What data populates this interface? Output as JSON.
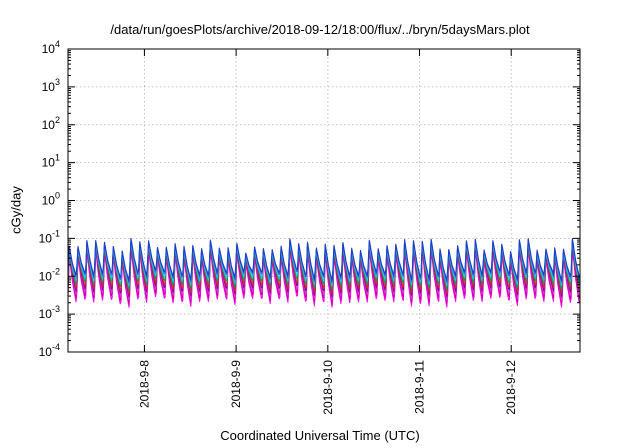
{
  "chart_data": {
    "type": "line",
    "title": "/data/run/goesPlots/archive/2018-09-12/18:00/flux/../bryn/5daysMars.plot",
    "xlabel": "Coordinated Universal Time (UTC)",
    "ylabel": "cGy/day",
    "yscale": "log",
    "ylim": [
      0.0001,
      10000
    ],
    "ytick_labels": [
      {
        "base": "10",
        "exp": "-4"
      },
      {
        "base": "10",
        "exp": "-3"
      },
      {
        "base": "10",
        "exp": "-2"
      },
      {
        "base": "10",
        "exp": "-1"
      },
      {
        "base": "10",
        "exp": "0"
      },
      {
        "base": "10",
        "exp": "1"
      },
      {
        "base": "10",
        "exp": "2"
      },
      {
        "base": "10",
        "exp": "3"
      },
      {
        "base": "10",
        "exp": "4"
      }
    ],
    "xlim": [
      "2018-09-07 04:00",
      "2018-09-12 18:00"
    ],
    "xtick_labels": [
      "2018-9-8",
      "2018-9-9",
      "2018-9-10",
      "2018-9-11",
      "2018-9-12"
    ],
    "grid": true,
    "legend": "none",
    "pattern": {
      "sawtooth_period_hours": 2.3,
      "teeth_count": 58,
      "peak_value_range": [
        0.04,
        0.1
      ],
      "trough_value_range": [
        0.0015,
        0.003
      ]
    },
    "series": [
      {
        "color": "#ff00ff",
        "peak_scale": 0.55,
        "trough_scale": 1.0
      },
      {
        "color": "#cc0099",
        "peak_scale": 0.6,
        "trough_scale": 1.25
      },
      {
        "color": "#dd33dd",
        "peak_scale": 0.65,
        "trough_scale": 1.55
      },
      {
        "color": "#7b0f8a",
        "peak_scale": 0.7,
        "trough_scale": 1.9
      },
      {
        "color": "#e8222a",
        "peak_scale": 0.8,
        "trough_scale": 2.3
      },
      {
        "color": "#00a060",
        "peak_scale": 0.82,
        "trough_scale": 2.9
      },
      {
        "color": "#20c8e0",
        "peak_scale": 0.85,
        "trough_scale": 3.6
      },
      {
        "color": "#3a60f0",
        "peak_scale": 0.95,
        "trough_scale": 4.4
      },
      {
        "color": "#1d3fc8",
        "peak_scale": 1.0,
        "trough_scale": 5.0
      }
    ]
  }
}
